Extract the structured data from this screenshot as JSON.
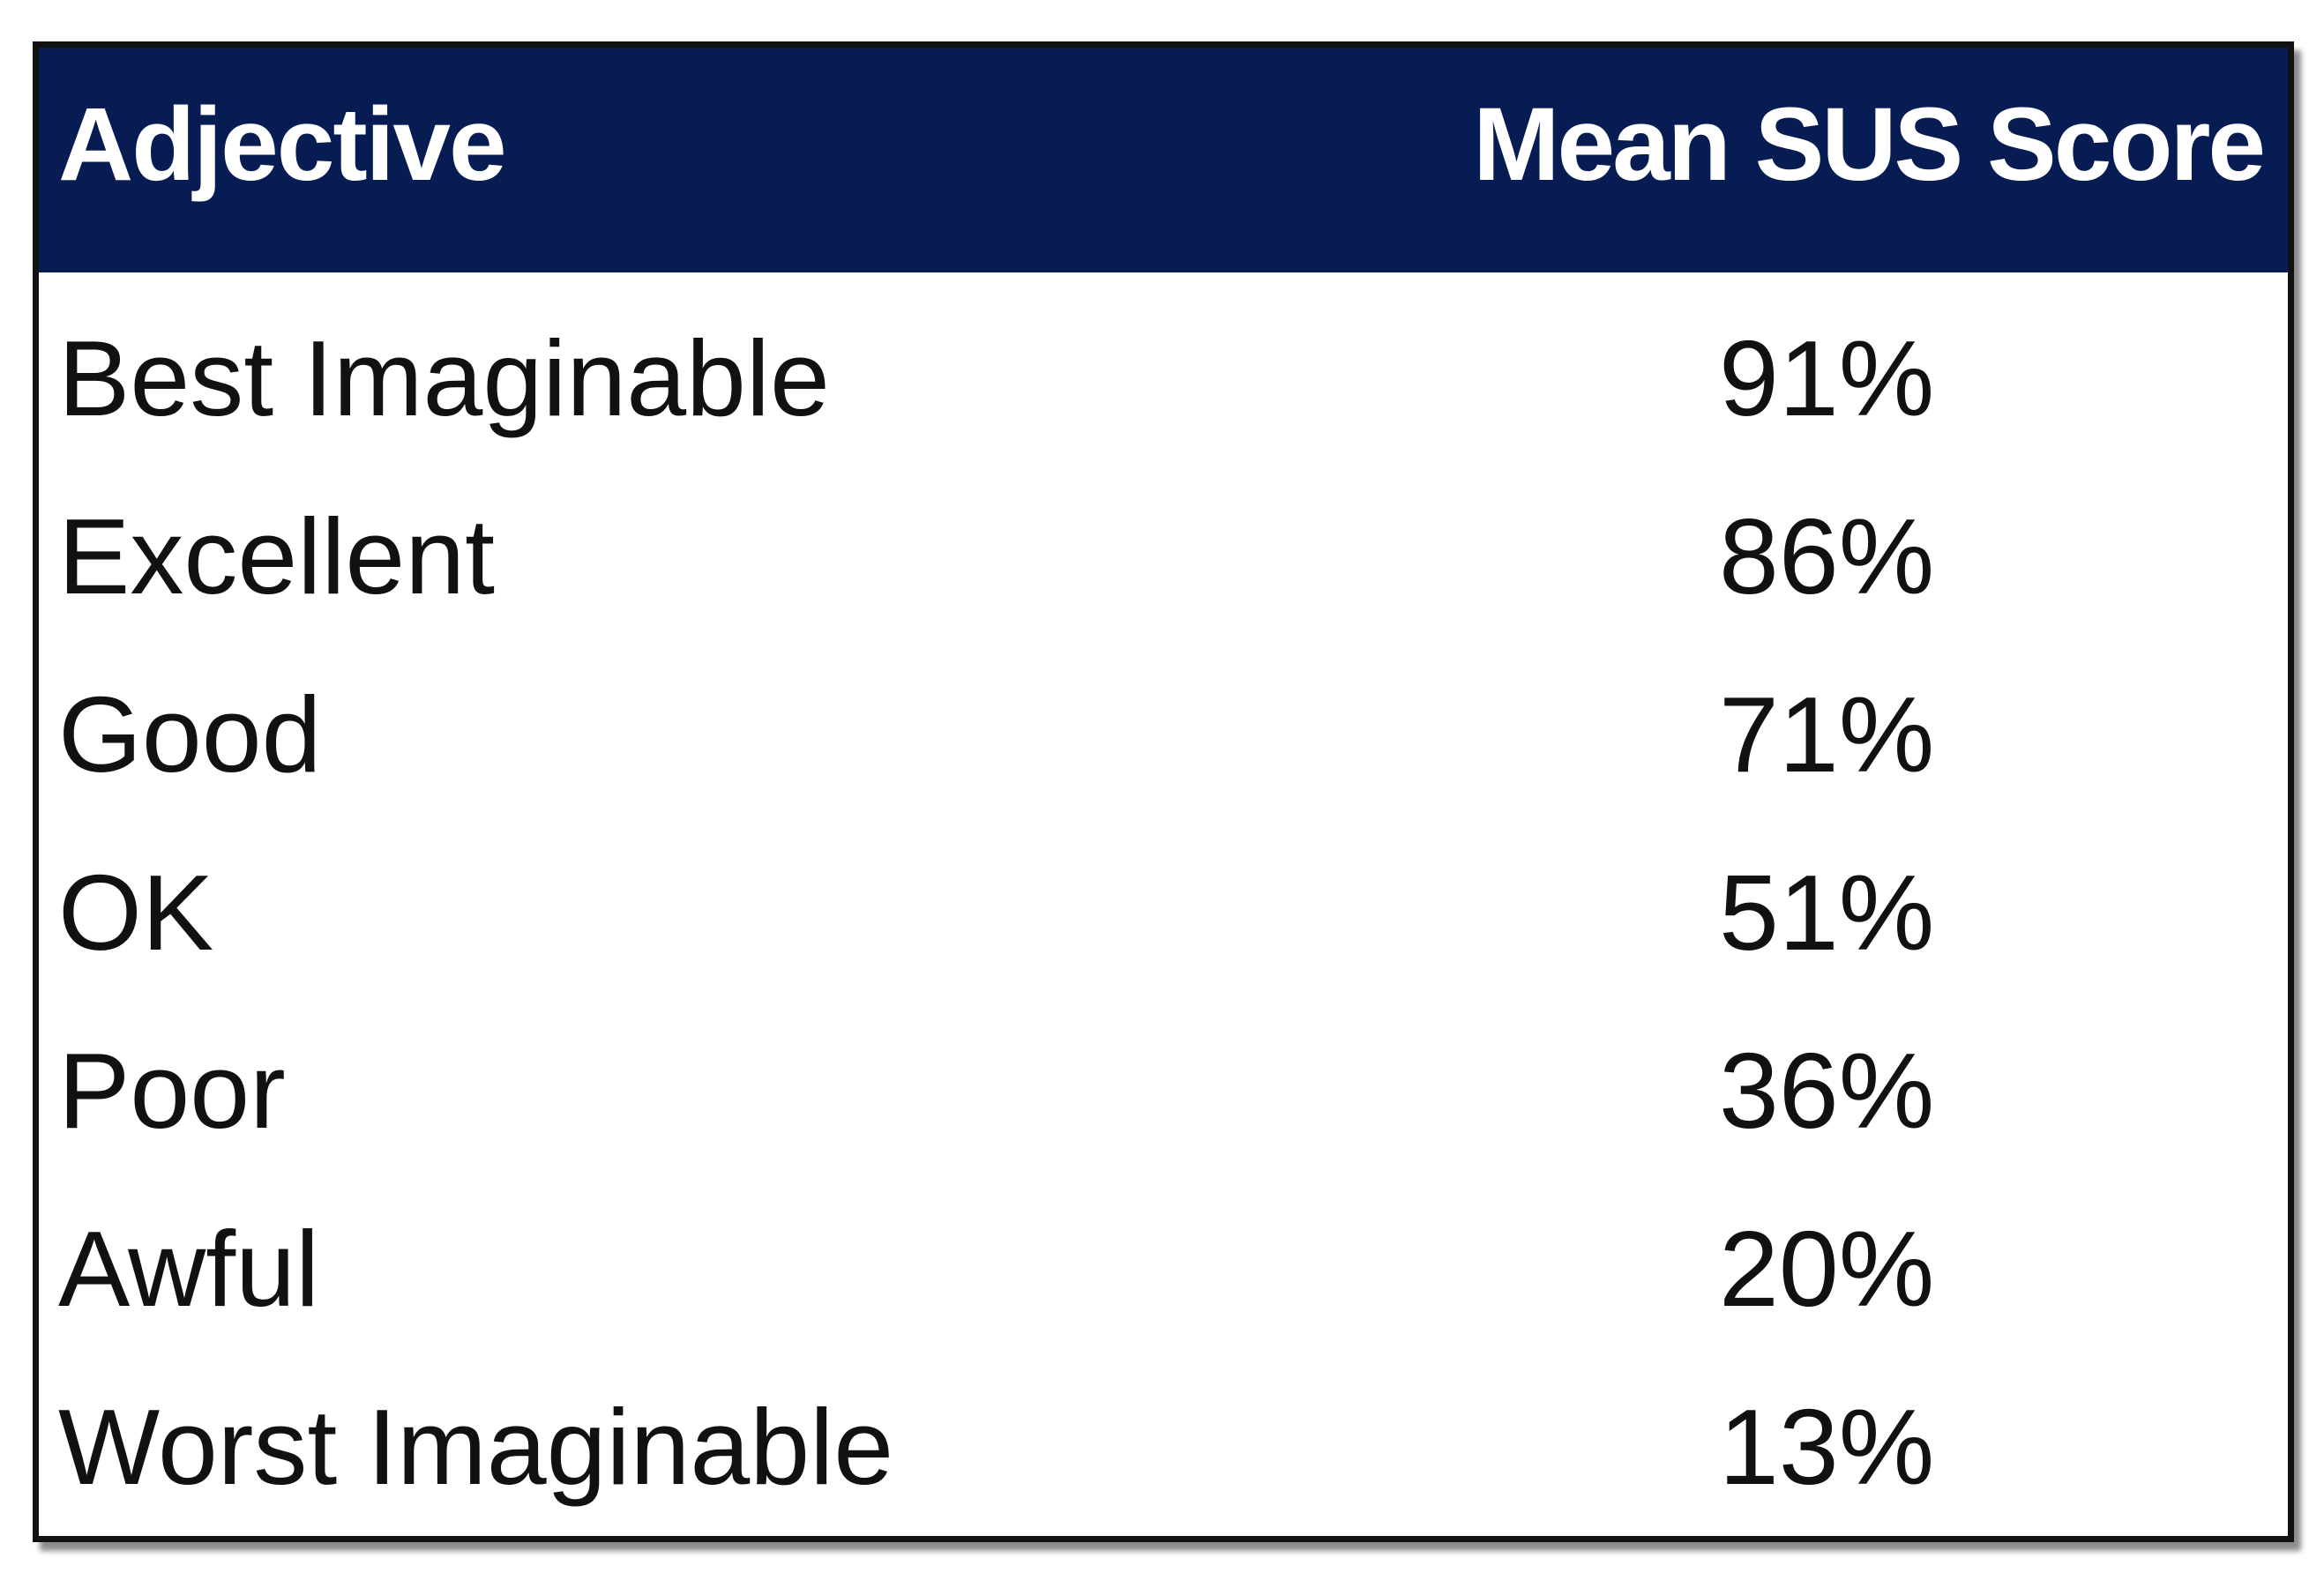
{
  "table": {
    "header": [
      "Adjective",
      "Mean SUS Score"
    ],
    "rows": [
      [
        "Best Imaginable",
        "91%"
      ],
      [
        "Excellent",
        "86%"
      ],
      [
        "Good",
        "71%"
      ],
      [
        "OK",
        "51%"
      ],
      [
        "Poor",
        "36%"
      ],
      [
        "Awful",
        "20%"
      ],
      [
        "Worst Imaginable",
        "13%"
      ]
    ]
  }
}
